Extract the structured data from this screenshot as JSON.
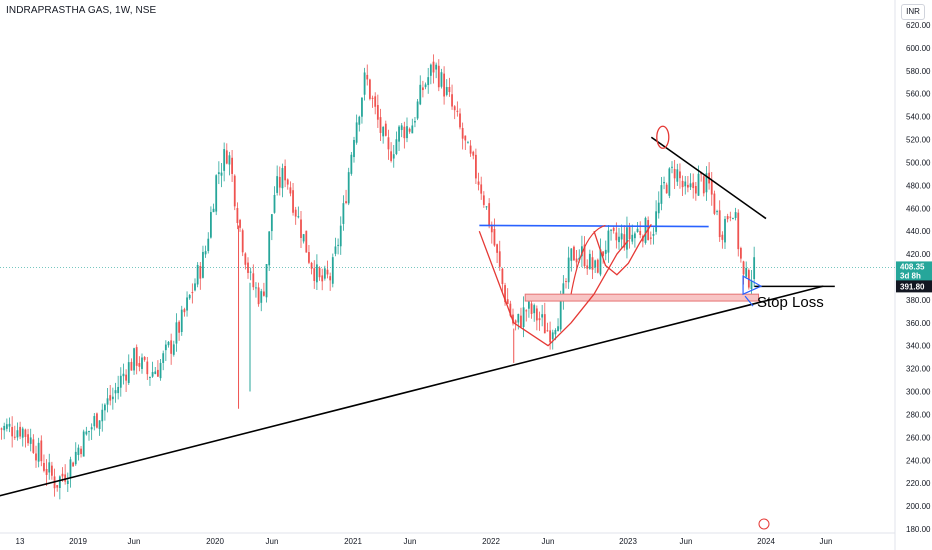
{
  "header": {
    "title": "INDRAPRASTHA GAS, 1W, NSE",
    "currency": "INR"
  },
  "colors": {
    "up": "#26a69a",
    "down": "#ef5350",
    "trendline": "#000000",
    "neckline": "#2962ff",
    "drawing": "#e53935",
    "stop_zone_fill": "#f8c4c4",
    "stop_zone_border": "#e57373",
    "price_tag": "#26a69a",
    "stop_tag": "#131722"
  },
  "chart_data": {
    "type": "candlestick",
    "title": "INDRAPRASTHA GAS, 1W, NSE",
    "ylim": [
      180,
      630
    ],
    "y_ticks": [
      180,
      200,
      220,
      240,
      260,
      280,
      300,
      320,
      340,
      360,
      380,
      400,
      420,
      440,
      460,
      480,
      500,
      520,
      540,
      560,
      580,
      600,
      620
    ],
    "x_ticks": [
      "13",
      "2019",
      "Jun",
      "2020",
      "Jun",
      "2021",
      "Jun",
      "2022",
      "Jun",
      "2023",
      "Jun",
      "2024",
      "Jun"
    ],
    "last_price": "408.35",
    "countdown": "3d 8h",
    "stop_level": "391.80",
    "annotation": "Stop Loss",
    "close_path": [
      [
        "2018-08",
        268
      ],
      [
        "2018-09",
        255
      ],
      [
        "2018-10",
        235
      ],
      [
        "2018-11",
        220
      ],
      [
        "2018-12",
        232
      ],
      [
        "2019-01",
        252
      ],
      [
        "2019-02",
        268
      ],
      [
        "2019-03",
        285
      ],
      [
        "2019-04",
        296
      ],
      [
        "2019-05",
        318
      ],
      [
        "2019-06",
        330
      ],
      [
        "2019-07",
        315
      ],
      [
        "2019-08",
        322
      ],
      [
        "2019-09",
        340
      ],
      [
        "2019-10",
        362
      ],
      [
        "2019-11",
        392
      ],
      [
        "2019-12",
        420
      ],
      [
        "2020-01",
        488
      ],
      [
        "2020-02",
        512
      ],
      [
        "2020-03",
        445
      ],
      [
        "2020-04",
        395
      ],
      [
        "2020-05",
        380
      ],
      [
        "2020-06",
        472
      ],
      [
        "2020-07",
        492
      ],
      [
        "2020-08",
        455
      ],
      [
        "2020-09",
        420
      ],
      [
        "2020-10",
        395
      ],
      [
        "2020-11",
        400
      ],
      [
        "2020-12",
        452
      ],
      [
        "2021-01",
        528
      ],
      [
        "2021-02",
        575
      ],
      [
        "2021-03",
        538
      ],
      [
        "2021-04",
        505
      ],
      [
        "2021-05",
        528
      ],
      [
        "2021-06",
        532
      ],
      [
        "2021-07",
        565
      ],
      [
        "2021-08",
        585
      ],
      [
        "2021-09",
        562
      ],
      [
        "2021-10",
        535
      ],
      [
        "2021-11",
        505
      ],
      [
        "2021-12",
        482
      ],
      [
        "2022-01",
        440
      ],
      [
        "2022-02",
        390
      ],
      [
        "2022-03",
        355
      ],
      [
        "2022-04",
        372
      ],
      [
        "2022-05",
        365
      ],
      [
        "2022-06",
        352
      ],
      [
        "2022-07",
        372
      ],
      [
        "2022-08",
        420
      ],
      [
        "2022-09",
        420
      ],
      [
        "2022-10",
        405
      ],
      [
        "2022-11",
        430
      ],
      [
        "2022-12",
        432
      ],
      [
        "2023-01",
        435
      ],
      [
        "2023-02",
        442
      ],
      [
        "2023-03",
        440
      ],
      [
        "2023-04",
        478
      ],
      [
        "2023-05",
        495
      ],
      [
        "2023-06",
        470
      ],
      [
        "2023-07",
        485
      ],
      [
        "2023-08",
        478
      ],
      [
        "2023-09",
        440
      ],
      [
        "2023-10",
        465
      ],
      [
        "2023-11",
        395
      ],
      [
        "2023-12",
        408
      ]
    ],
    "trendlines": [
      {
        "name": "support",
        "from": [
          "2018-05",
          206
        ],
        "to": [
          "2024-06",
          392
        ]
      },
      {
        "name": "resistance",
        "from": [
          "2023-03",
          522
        ],
        "to": [
          "2024-01",
          451
        ]
      },
      {
        "name": "neckline",
        "from": [
          "2021-12",
          445
        ],
        "to": [
          "2023-08",
          444
        ]
      },
      {
        "name": "stop-line",
        "from": [
          "2023-12",
          391.8
        ],
        "to": [
          "2024-07",
          391.8
        ]
      }
    ],
    "stop_zone": {
      "from": "2022-04",
      "to": "2023-12",
      "low": 379,
      "high": 385
    }
  }
}
